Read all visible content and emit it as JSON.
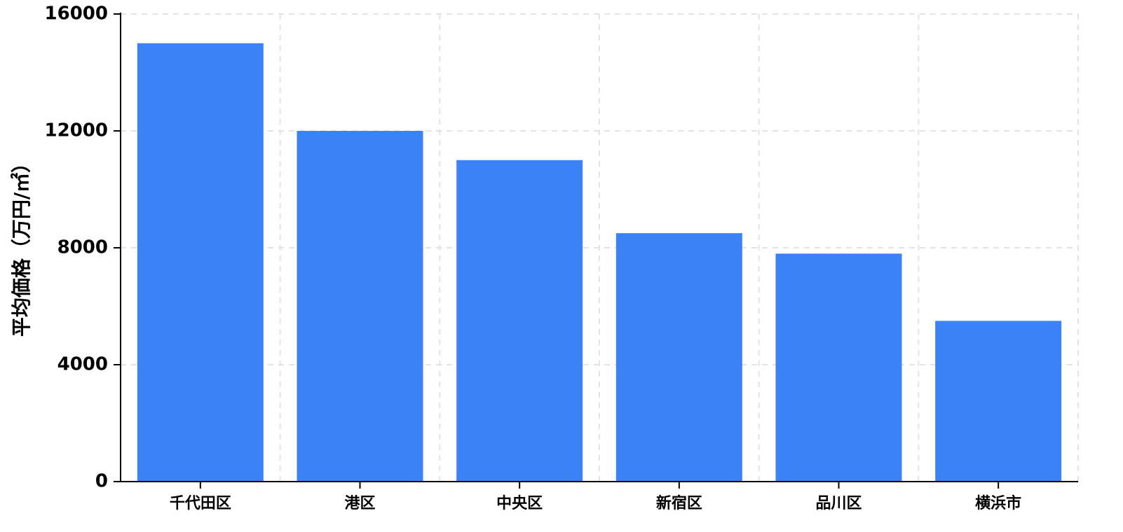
{
  "chart_data": {
    "type": "bar",
    "categories": [
      "千代田区",
      "港区",
      "中央区",
      "新宿区",
      "品川区",
      "横浜市"
    ],
    "values": [
      15000,
      12000,
      11000,
      8500,
      7800,
      5500
    ],
    "title": "",
    "xlabel": "",
    "ylabel": "平均価格（万円/㎡）",
    "ylim": [
      0,
      16000
    ],
    "yticks": [
      0,
      4000,
      8000,
      12000,
      16000
    ],
    "ytick_labels": [
      "0",
      "4000",
      "8000",
      "12000",
      "16000"
    ],
    "grid": true,
    "legend": "none",
    "bar_color": "#3b82f6",
    "grid_color": "#e3e3e3"
  }
}
